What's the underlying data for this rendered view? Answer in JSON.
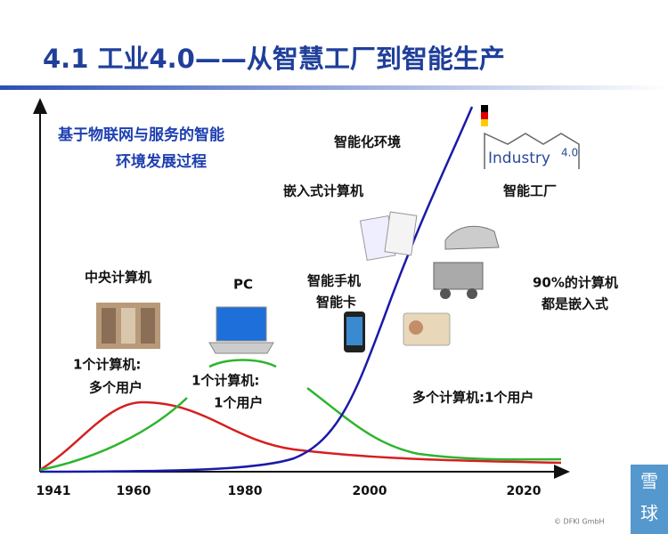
{
  "header": {
    "title": "4.1 工业4.0——从智慧工厂到智能生产"
  },
  "subtitle": [
    "基于物联网与服务的智能",
    "环境发展过程"
  ],
  "annotations": [
    "智能化环境",
    "嵌入式计算机",
    "智能工厂",
    "中央计算机",
    "PC",
    "智能手机",
    "智能卡",
    "90%的计算机",
    "都是嵌入式",
    "1个计算机:",
    "多个用户",
    "1个计算机:",
    "1个用户",
    "多个计算机:1个用户"
  ],
  "x_axis": {
    "ticks": [
      "1941",
      "1960",
      "1980",
      "2000",
      "2020"
    ]
  },
  "logo": {
    "name": "Industry",
    "version": "4.0"
  },
  "credit": "© DFKI GmbH",
  "watermark": [
    "雪",
    "球"
  ]
}
